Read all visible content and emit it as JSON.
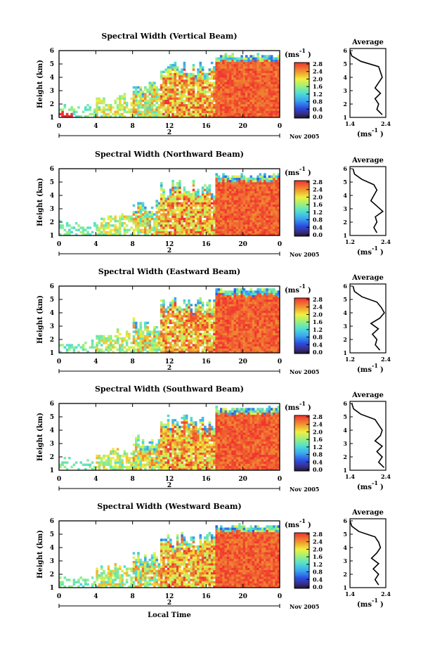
{
  "figure": {
    "xaxis_label": "Local Time",
    "date_day": "2",
    "date_label": "Nov 2005",
    "ylabel": "Height (km)",
    "colorbar_unit_main": "(ms",
    "colorbar_unit_exp": "-1",
    "colorbar_unit_close": ")",
    "avg_title": "Average",
    "avg_unit_main": "(ms",
    "avg_unit_exp": "-1",
    "avg_unit_close": ")"
  },
  "chart_data": [
    {
      "type": "heatmap",
      "title": "Spectral Width (Vertical Beam)",
      "x_ticks": [
        "0",
        "4",
        "8",
        "12",
        "16",
        "20",
        "0"
      ],
      "y_ticks": [
        "1",
        "2",
        "3",
        "4",
        "5",
        "6"
      ],
      "xlim": [
        0,
        24
      ],
      "ylim": [
        1,
        6
      ],
      "colorbar_ticks": [
        "0.0",
        "0.4",
        "0.8",
        "1.2",
        "1.6",
        "2.0",
        "2.4",
        "2.8"
      ],
      "colorbar_range": [
        0.0,
        2.8
      ],
      "average_profile": {
        "x_ticks": [
          "1.4",
          "2.4"
        ],
        "xlim": [
          1.4,
          2.4
        ],
        "ylim": [
          1,
          6
        ],
        "heights": [
          1.2,
          1.6,
          2.0,
          2.4,
          2.8,
          3.2,
          3.6,
          4.0,
          4.4,
          4.8,
          5.2,
          5.6,
          6.0
        ],
        "values": [
          2.3,
          2.15,
          2.2,
          2.1,
          2.25,
          2.1,
          2.2,
          2.3,
          2.25,
          2.2,
          1.7,
          1.45,
          1.4
        ]
      },
      "echo_top_km": 5.5,
      "summary_by_time": [
        {
          "t": 0,
          "top_km": 1.5,
          "value": 2.8
        },
        {
          "t": 2,
          "top_km": 2.0,
          "value": 1.0
        },
        {
          "t": 4,
          "top_km": 1.6,
          "value": 1.2
        },
        {
          "t": 5,
          "top_km": 2.2,
          "value": 2.4
        },
        {
          "t": 8,
          "top_km": 2.8,
          "value": 1.4
        },
        {
          "t": 10,
          "top_km": 3.5,
          "value": 1.8
        },
        {
          "t": 12,
          "top_km": 4.8,
          "value": 2.6
        },
        {
          "t": 14,
          "top_km": 5.4,
          "value": 2.7
        },
        {
          "t": 16,
          "top_km": 5.0,
          "value": 2.2
        },
        {
          "t": 18,
          "top_km": 5.5,
          "value": 2.8
        },
        {
          "t": 20,
          "top_km": 5.5,
          "value": 2.8
        },
        {
          "t": 24,
          "top_km": 5.5,
          "value": 2.8
        }
      ]
    },
    {
      "type": "heatmap",
      "title": "Spectral Width (Northward Beam)",
      "x_ticks": [
        "0",
        "4",
        "8",
        "12",
        "16",
        "20",
        "0"
      ],
      "y_ticks": [
        "1",
        "2",
        "3",
        "4",
        "5",
        "6"
      ],
      "xlim": [
        0,
        24
      ],
      "ylim": [
        1,
        6
      ],
      "colorbar_ticks": [
        "0.0",
        "0.4",
        "0.8",
        "1.2",
        "1.6",
        "2.0",
        "2.4",
        "2.8"
      ],
      "colorbar_range": [
        0.0,
        2.8
      ],
      "average_profile": {
        "x_ticks": [
          "1.2",
          "2.4"
        ],
        "xlim": [
          1.2,
          2.4
        ],
        "ylim": [
          1,
          6
        ],
        "heights": [
          1.2,
          1.6,
          2.0,
          2.4,
          2.8,
          3.2,
          3.6,
          4.0,
          4.4,
          4.8,
          5.2,
          5.6,
          6.0
        ],
        "values": [
          2.1,
          2.0,
          2.1,
          2.05,
          2.3,
          2.1,
          1.9,
          2.0,
          2.1,
          2.0,
          1.6,
          1.35,
          1.3
        ]
      },
      "echo_top_km": 5.4
    },
    {
      "type": "heatmap",
      "title": "Spectral Width (Eastward Beam)",
      "x_ticks": [
        "0",
        "4",
        "8",
        "12",
        "16",
        "20",
        "0"
      ],
      "y_ticks": [
        "1",
        "2",
        "3",
        "4",
        "5",
        "6"
      ],
      "xlim": [
        0,
        24
      ],
      "ylim": [
        1,
        6
      ],
      "colorbar_ticks": [
        "0.0",
        "0.4",
        "0.8",
        "1.2",
        "1.6",
        "2.0",
        "2.4",
        "2.8"
      ],
      "colorbar_range": [
        0.0,
        2.8
      ],
      "average_profile": {
        "x_ticks": [
          "1.2",
          "2.4"
        ],
        "xlim": [
          1.2,
          2.4
        ],
        "ylim": [
          1,
          6
        ],
        "heights": [
          1.2,
          1.6,
          2.0,
          2.4,
          2.8,
          3.2,
          3.6,
          4.0,
          4.4,
          4.8,
          5.2,
          5.6,
          6.0
        ],
        "values": [
          2.2,
          2.05,
          2.1,
          1.95,
          2.15,
          1.9,
          2.2,
          2.35,
          2.25,
          2.1,
          1.6,
          1.35,
          1.3
        ]
      },
      "echo_top_km": 5.6
    },
    {
      "type": "heatmap",
      "title": "Spectral Width (Southward Beam)",
      "x_ticks": [
        "0",
        "4",
        "8",
        "12",
        "16",
        "20",
        "0"
      ],
      "y_ticks": [
        "1",
        "2",
        "3",
        "4",
        "5",
        "6"
      ],
      "xlim": [
        0,
        24
      ],
      "ylim": [
        1,
        6
      ],
      "colorbar_ticks": [
        "0.0",
        "0.4",
        "0.8",
        "1.2",
        "1.6",
        "2.0",
        "2.4",
        "2.8"
      ],
      "colorbar_range": [
        0.0,
        2.8
      ],
      "average_profile": {
        "x_ticks": [
          "1.4",
          "2.4"
        ],
        "xlim": [
          1.4,
          2.4
        ],
        "ylim": [
          1,
          6
        ],
        "heights": [
          1.2,
          1.6,
          2.0,
          2.4,
          2.8,
          3.2,
          3.6,
          4.0,
          4.4,
          4.8,
          5.2,
          5.6,
          6.0
        ],
        "values": [
          2.35,
          2.2,
          2.3,
          2.15,
          2.3,
          2.1,
          2.25,
          2.3,
          2.2,
          2.1,
          1.7,
          1.5,
          1.45
        ]
      },
      "echo_top_km": 5.5
    },
    {
      "type": "heatmap",
      "title": "Spectral Width (Westward Beam)",
      "x_ticks": [
        "0",
        "4",
        "8",
        "12",
        "16",
        "20",
        "0"
      ],
      "y_ticks": [
        "1",
        "2",
        "3",
        "4",
        "5",
        "6"
      ],
      "xlim": [
        0,
        24
      ],
      "ylim": [
        1,
        6
      ],
      "colorbar_ticks": [
        "0.0",
        "0.4",
        "0.8",
        "1.2",
        "1.6",
        "2.0",
        "2.4",
        "2.8"
      ],
      "colorbar_range": [
        0.0,
        2.8
      ],
      "average_profile": {
        "x_ticks": [
          "1.4",
          "2.4"
        ],
        "xlim": [
          1.4,
          2.4
        ],
        "ylim": [
          1,
          6
        ],
        "heights": [
          1.2,
          1.6,
          2.0,
          2.4,
          2.8,
          3.2,
          3.6,
          4.0,
          4.4,
          4.8,
          5.2,
          5.6,
          6.0
        ],
        "values": [
          2.2,
          2.1,
          2.2,
          2.05,
          2.2,
          2.0,
          2.15,
          2.25,
          2.2,
          2.1,
          1.65,
          1.45,
          1.4
        ]
      },
      "echo_top_km": 5.5
    }
  ]
}
